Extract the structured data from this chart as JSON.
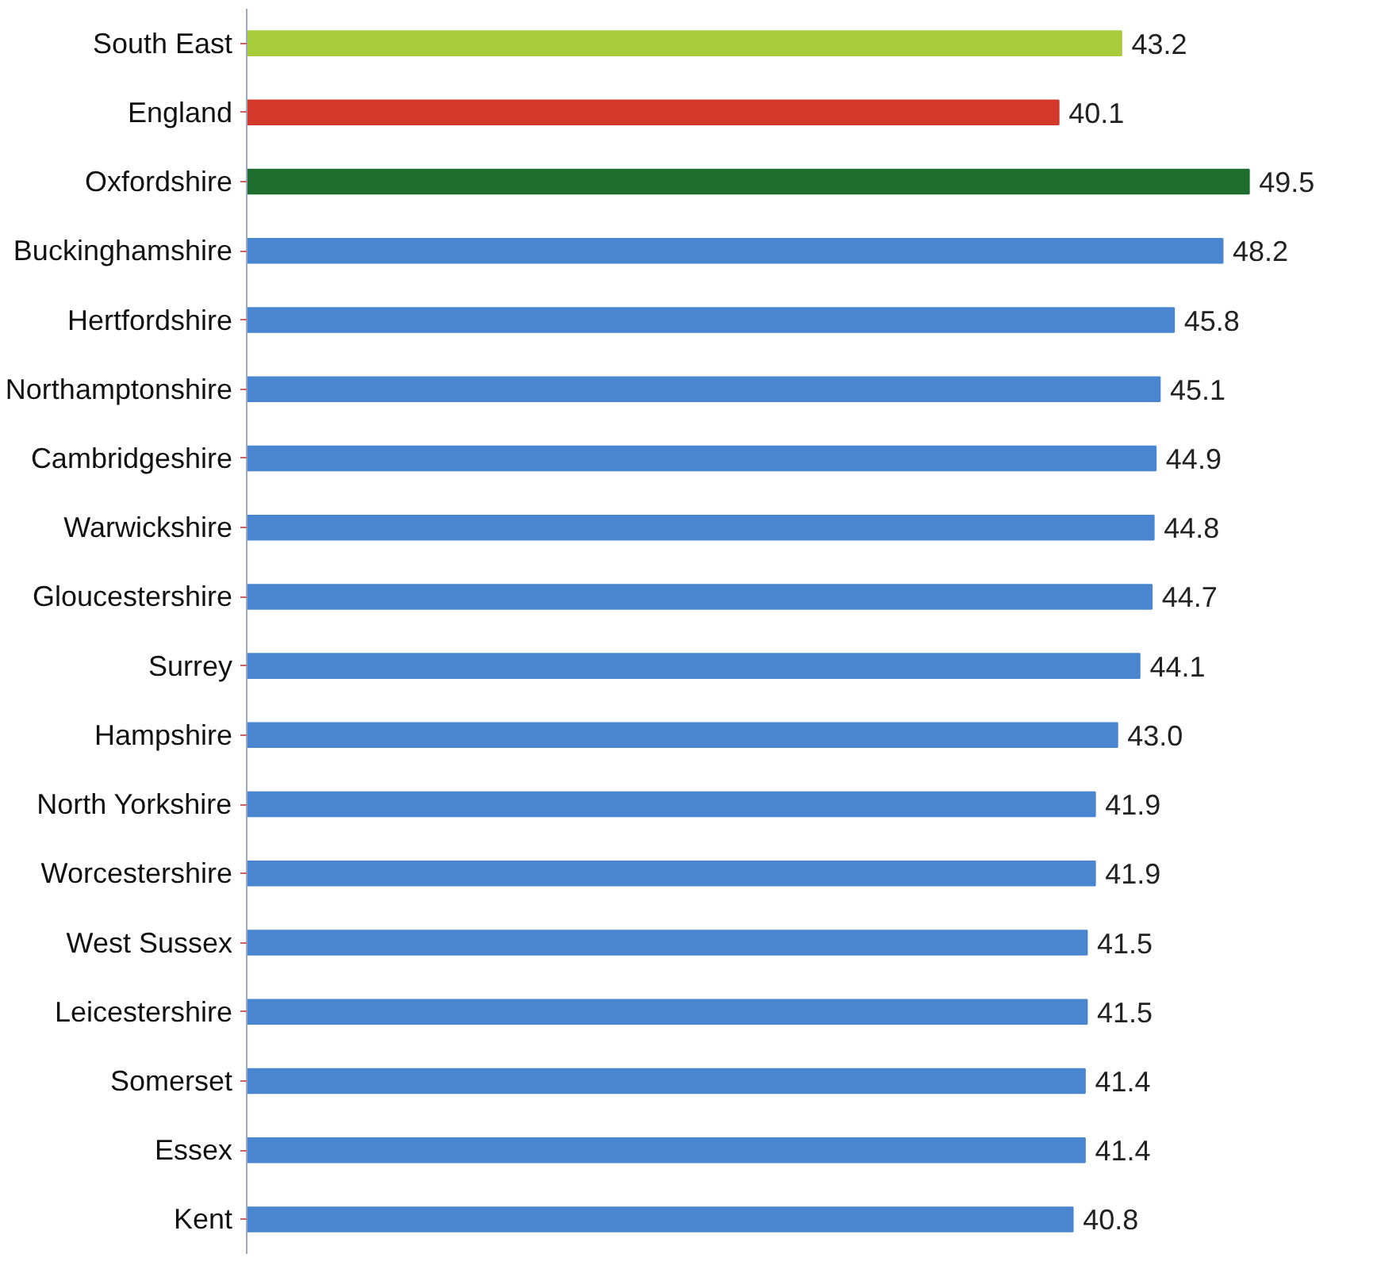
{
  "chart_data": {
    "type": "bar",
    "orientation": "horizontal",
    "data_labels": true,
    "grid": false,
    "categories": [
      "South East",
      "England",
      "Oxfordshire",
      "Buckinghamshire",
      "Hertfordshire",
      "Northamptonshire",
      "Cambridgeshire",
      "Warwickshire",
      "Gloucestershire",
      "Surrey",
      "Hampshire",
      "North Yorkshire",
      "Worcestershire",
      "West Sussex",
      "Leicestershire",
      "Somerset",
      "Essex",
      "Kent"
    ],
    "values": [
      43.2,
      40.1,
      49.5,
      48.2,
      45.8,
      45.1,
      44.9,
      44.8,
      44.7,
      44.1,
      43.0,
      41.9,
      41.9,
      41.5,
      41.5,
      41.4,
      41.4,
      40.8
    ],
    "value_labels": [
      "43.2",
      "40.1",
      "49.5",
      "48.2",
      "45.8",
      "45.1",
      "44.9",
      "44.8",
      "44.7",
      "44.1",
      "43.0",
      "41.9",
      "41.9",
      "41.5",
      "41.5",
      "41.4",
      "41.4",
      "40.8"
    ],
    "colors": [
      "#a8cc3c",
      "#d2392b",
      "#1f6e2f",
      "#4a86d0",
      "#4a86d0",
      "#4a86d0",
      "#4a86d0",
      "#4a86d0",
      "#4a86d0",
      "#4a86d0",
      "#4a86d0",
      "#4a86d0",
      "#4a86d0",
      "#4a86d0",
      "#4a86d0",
      "#4a86d0",
      "#4a86d0",
      "#4a86d0"
    ]
  }
}
